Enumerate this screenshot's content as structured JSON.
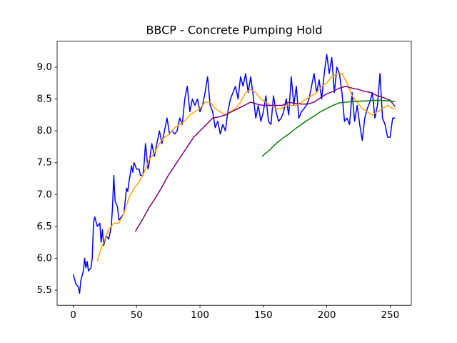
{
  "chart_data": {
    "type": "line",
    "title": "BBCP - Concrete Pumping Hold",
    "xlim": [
      -12.7,
      266.7
    ],
    "xticks": [
      0,
      50,
      100,
      150,
      200,
      250
    ],
    "ylim": [
      5.262,
      9.408
    ],
    "yticks": [
      5.5,
      {
        "value": 6,
        "label": "6.0"
      },
      6.5,
      {
        "value": 7,
        "label": "7.0"
      },
      7.5,
      {
        "value": 8,
        "label": "8.0"
      },
      8.5,
      {
        "value": 9,
        "label": "9.0"
      }
    ],
    "grid": false,
    "series": [
      {
        "color": "#0000ff",
        "x": [
          0,
          2,
          4,
          5,
          6,
          8,
          9,
          10,
          11,
          12,
          14,
          15,
          16,
          17,
          19,
          21,
          22,
          23,
          24,
          26,
          28,
          30,
          31,
          32,
          33,
          35,
          36,
          38,
          40,
          42,
          43,
          44,
          46,
          47,
          48,
          50,
          52,
          53,
          55,
          56,
          57,
          59,
          60,
          62,
          64,
          66,
          68,
          70,
          72,
          74,
          76,
          78,
          80,
          82,
          84,
          86,
          88,
          90,
          92,
          94,
          96,
          98,
          100,
          102,
          104,
          106,
          108,
          110,
          112,
          114,
          116,
          118,
          120,
          122,
          124,
          126,
          128,
          130,
          132,
          134,
          136,
          138,
          140,
          142,
          144,
          146,
          148,
          150,
          152,
          154,
          156,
          158,
          160,
          162,
          164,
          166,
          168,
          170,
          172,
          174,
          176,
          178,
          180,
          182,
          184,
          186,
          188,
          190,
          192,
          194,
          196,
          198,
          200,
          202,
          204,
          206,
          208,
          210,
          212,
          214,
          216,
          218,
          220,
          222,
          224,
          226,
          228,
          230,
          232,
          234,
          236,
          238,
          240,
          242,
          244,
          246,
          248,
          250,
          252,
          254
        ],
        "values": [
          5.75,
          5.6,
          5.55,
          5.45,
          5.65,
          5.8,
          6.0,
          5.85,
          5.95,
          5.8,
          5.85,
          6.0,
          6.55,
          6.65,
          6.5,
          6.55,
          6.25,
          6.45,
          6.2,
          6.35,
          6.3,
          6.5,
          6.8,
          7.3,
          6.9,
          6.8,
          6.6,
          6.65,
          6.7,
          7.1,
          7.05,
          7.2,
          7.45,
          7.35,
          7.5,
          7.4,
          7.4,
          7.3,
          7.3,
          7.5,
          7.8,
          7.4,
          7.5,
          7.8,
          7.6,
          7.8,
          8.0,
          7.8,
          8.0,
          8.2,
          7.95,
          8.0,
          7.95,
          8.0,
          8.2,
          8.1,
          8.5,
          8.7,
          8.3,
          8.5,
          8.4,
          8.5,
          8.3,
          8.4,
          8.6,
          8.85,
          8.4,
          8.3,
          8.05,
          8.15,
          7.95,
          8.1,
          8.0,
          8.3,
          8.5,
          8.6,
          8.7,
          8.5,
          8.85,
          8.7,
          8.9,
          8.6,
          8.85,
          8.55,
          8.2,
          8.4,
          8.15,
          8.3,
          8.55,
          8.15,
          8.1,
          8.55,
          8.3,
          8.15,
          8.2,
          8.3,
          8.5,
          8.25,
          8.85,
          8.4,
          8.7,
          8.2,
          8.3,
          8.35,
          8.4,
          8.5,
          8.7,
          8.9,
          8.6,
          8.8,
          8.5,
          8.9,
          9.2,
          8.9,
          9.15,
          8.6,
          9.0,
          8.9,
          8.6,
          8.15,
          8.2,
          8.1,
          8.6,
          8.15,
          8.4,
          8.1,
          7.85,
          8.2,
          8.35,
          8.45,
          8.6,
          8.2,
          8.4,
          8.9,
          8.2,
          8.1,
          7.9,
          7.9,
          8.2,
          8.2
        ]
      },
      {
        "color": "#ffa500",
        "x": [
          19,
          22,
          25,
          28,
          32,
          36,
          40,
          44,
          48,
          52,
          56,
          60,
          64,
          68,
          72,
          76,
          80,
          84,
          88,
          92,
          96,
          100,
          104,
          108,
          112,
          116,
          120,
          124,
          128,
          132,
          136,
          140,
          144,
          148,
          152,
          156,
          160,
          164,
          168,
          172,
          176,
          180,
          184,
          188,
          192,
          196,
          200,
          204,
          208,
          212,
          216,
          220,
          224,
          228,
          232,
          236,
          240,
          244,
          248,
          252,
          254
        ],
        "values": [
          5.95,
          6.15,
          6.3,
          6.45,
          6.55,
          6.55,
          6.7,
          6.95,
          7.1,
          7.2,
          7.35,
          7.55,
          7.65,
          7.8,
          7.9,
          7.95,
          8.05,
          8.1,
          8.15,
          8.25,
          8.3,
          8.35,
          8.45,
          8.45,
          8.35,
          8.3,
          8.25,
          8.3,
          8.35,
          8.45,
          8.6,
          8.65,
          8.6,
          8.5,
          8.45,
          8.4,
          8.35,
          8.35,
          8.4,
          8.4,
          8.4,
          8.45,
          8.5,
          8.55,
          8.6,
          8.7,
          8.75,
          8.85,
          8.9,
          8.9,
          8.75,
          8.55,
          8.45,
          8.35,
          8.3,
          8.25,
          8.3,
          8.35,
          8.4,
          8.35,
          8.35
        ]
      },
      {
        "color": "#800080",
        "x": [
          49,
          55,
          60,
          65,
          70,
          75,
          80,
          85,
          90,
          95,
          100,
          105,
          110,
          115,
          120,
          125,
          130,
          135,
          140,
          145,
          150,
          155,
          160,
          165,
          170,
          175,
          180,
          185,
          190,
          195,
          200,
          205,
          210,
          215,
          220,
          225,
          230,
          235,
          240,
          245,
          250,
          254
        ],
        "values": [
          6.42,
          6.62,
          6.8,
          6.95,
          7.12,
          7.3,
          7.45,
          7.6,
          7.75,
          7.9,
          8.0,
          8.1,
          8.2,
          8.22,
          8.25,
          8.3,
          8.35,
          8.4,
          8.45,
          8.42,
          8.4,
          8.4,
          8.4,
          8.4,
          8.45,
          8.43,
          8.42,
          8.42,
          8.45,
          8.52,
          8.58,
          8.62,
          8.67,
          8.7,
          8.67,
          8.65,
          8.62,
          8.6,
          8.55,
          8.52,
          8.48,
          8.38
        ]
      },
      {
        "color": "#008000",
        "x": [
          149,
          155,
          160,
          165,
          170,
          175,
          180,
          185,
          190,
          195,
          200,
          205,
          210,
          215,
          220,
          230,
          240,
          250,
          254
        ],
        "values": [
          7.6,
          7.7,
          7.8,
          7.88,
          7.95,
          8.03,
          8.1,
          8.17,
          8.23,
          8.3,
          8.35,
          8.4,
          8.44,
          8.45,
          8.46,
          8.47,
          8.48,
          8.47,
          8.46
        ]
      }
    ]
  }
}
